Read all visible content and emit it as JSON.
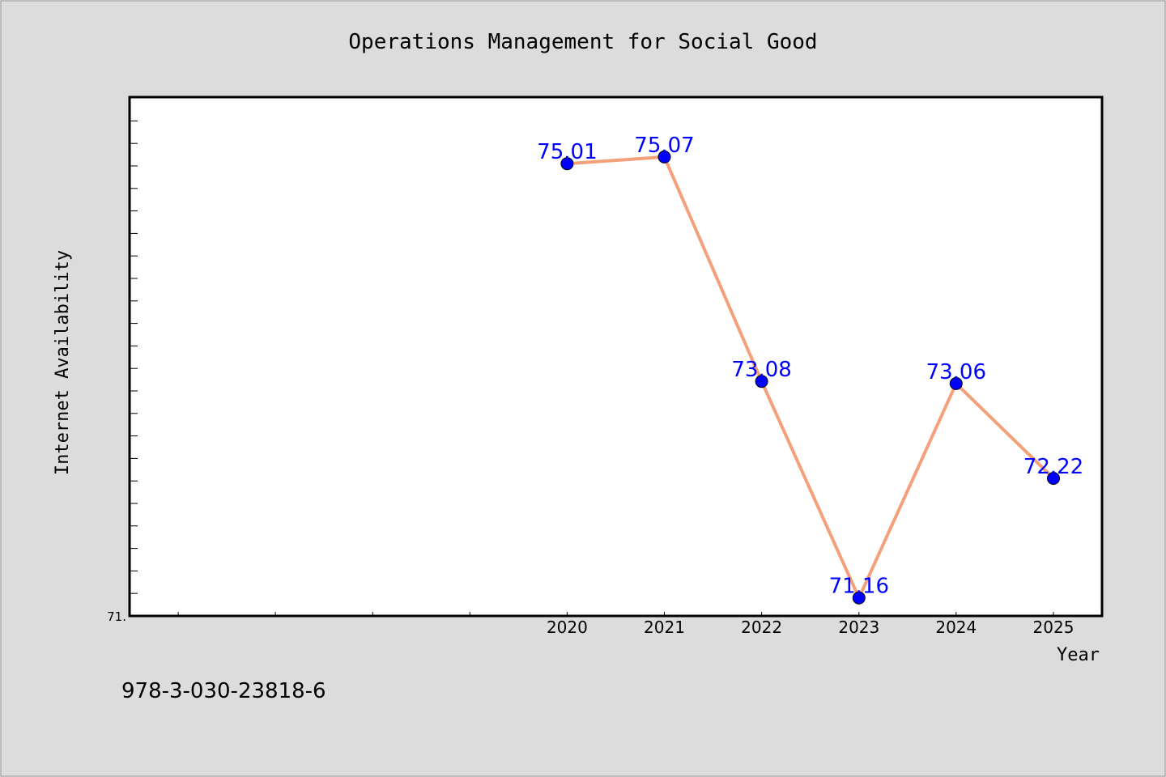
{
  "chart_data": {
    "type": "line",
    "title": "Operations Management for Social Good",
    "xlabel": "Year",
    "ylabel": "Internet Availability",
    "x": [
      "2020",
      "2021",
      "2022",
      "2023",
      "2024",
      "2025"
    ],
    "series": [
      {
        "values": [
          75.01,
          75.07,
          73.08,
          71.16,
          73.06,
          72.22
        ],
        "line_color": "#f4a07a",
        "marker_color": "#0000ff"
      }
    ],
    "data_labels": [
      "75.01",
      "75.07",
      "73.08",
      "71.16",
      "73.06",
      "72.22"
    ],
    "ytick_labels": [
      "71."
    ],
    "ylim": [
      71.0,
      75.6
    ],
    "x_slots": 10,
    "grid": false,
    "label_color": "#0000ff"
  },
  "footer": {
    "isbn": "978-3-030-23818-6"
  }
}
